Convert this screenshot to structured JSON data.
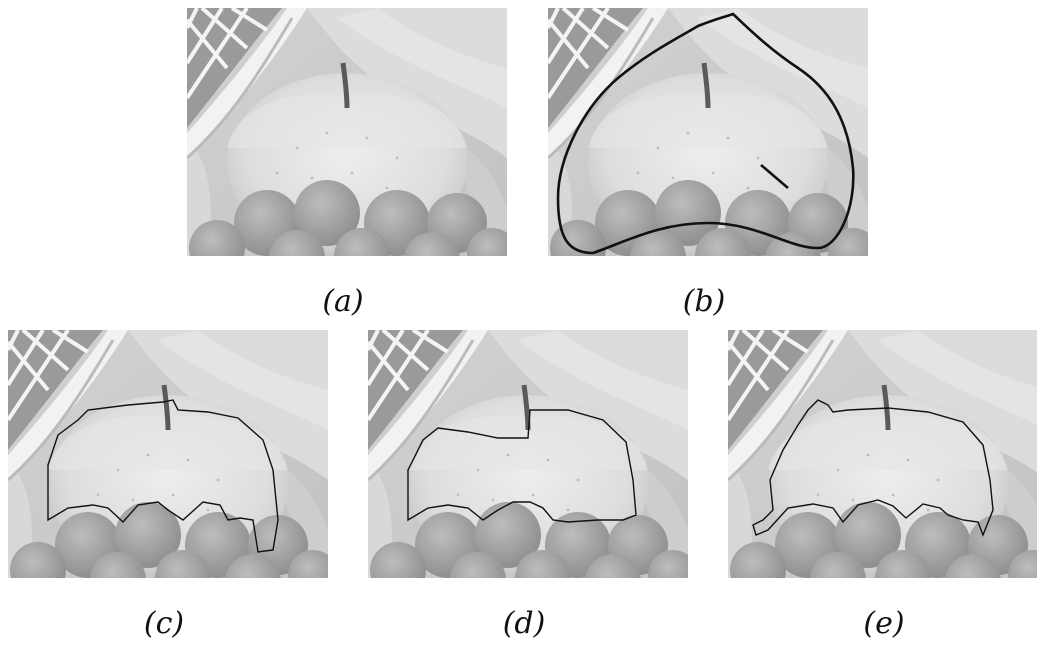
{
  "figure": {
    "panels": [
      {
        "id": "a",
        "caption": "(a)",
        "overlay": "none"
      },
      {
        "id": "b",
        "caption": "(b)",
        "overlay": "user-scribble"
      },
      {
        "id": "c",
        "caption": "(c)",
        "overlay": "segmentation-contour"
      },
      {
        "id": "d",
        "caption": "(d)",
        "overlay": "segmentation-contour"
      },
      {
        "id": "e",
        "caption": "(e)",
        "overlay": "segmentation-contour"
      }
    ]
  }
}
